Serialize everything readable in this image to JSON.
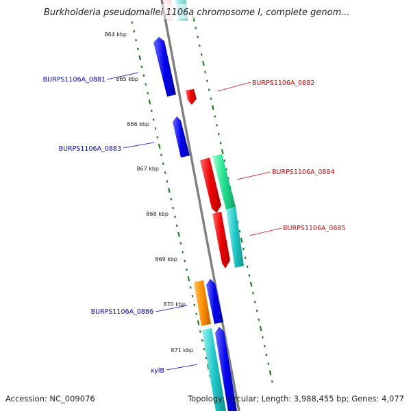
{
  "title": "Burkholderia pseudomallei 1106a chromosome I, complete genom...",
  "footer": {
    "accession": "Accession: NC_009076",
    "topology": "Topology: circular; Length: 3,988,455 bp; Genes: 4,077"
  },
  "colors": {
    "strand_minus": "#0000ee",
    "strand_plus": "#e00000",
    "gene_cyan": "#20c8c8",
    "gene_green": "#20e090",
    "gene_orange": "#ff9000",
    "backbone": "#808080",
    "ticks": "#208020"
  },
  "ticks": [
    {
      "position_kbp": 864,
      "label": "864 kbp"
    },
    {
      "position_kbp": 865,
      "label": "865 kbp"
    },
    {
      "position_kbp": 866,
      "label": "866 kbp"
    },
    {
      "position_kbp": 867,
      "label": "867 kbp"
    },
    {
      "position_kbp": 868,
      "label": "868 kbp"
    },
    {
      "position_kbp": 869,
      "label": "869 kbp"
    },
    {
      "position_kbp": 870,
      "label": "870 kbp"
    },
    {
      "position_kbp": 871,
      "label": "871 kbp"
    }
  ],
  "genes": [
    {
      "label": "BURPS1106A_0881",
      "strand": "minus",
      "color": "#0000ee"
    },
    {
      "label": "BURPS1106A_0882",
      "strand": "plus",
      "color": "#e00000"
    },
    {
      "label": "BURPS1106A_0883",
      "strand": "minus",
      "color": "#0000ee"
    },
    {
      "label": "BURPS1106A_0884",
      "strand": "plus",
      "color": "#e00000"
    },
    {
      "label": "BURPS1106A_0885",
      "strand": "plus",
      "color": "#e00000"
    },
    {
      "label": "BURPS1106A_0886",
      "strand": "minus",
      "color": "#0000ee"
    },
    {
      "label": "xylB",
      "strand": "minus",
      "color": "#0000ee"
    }
  ]
}
